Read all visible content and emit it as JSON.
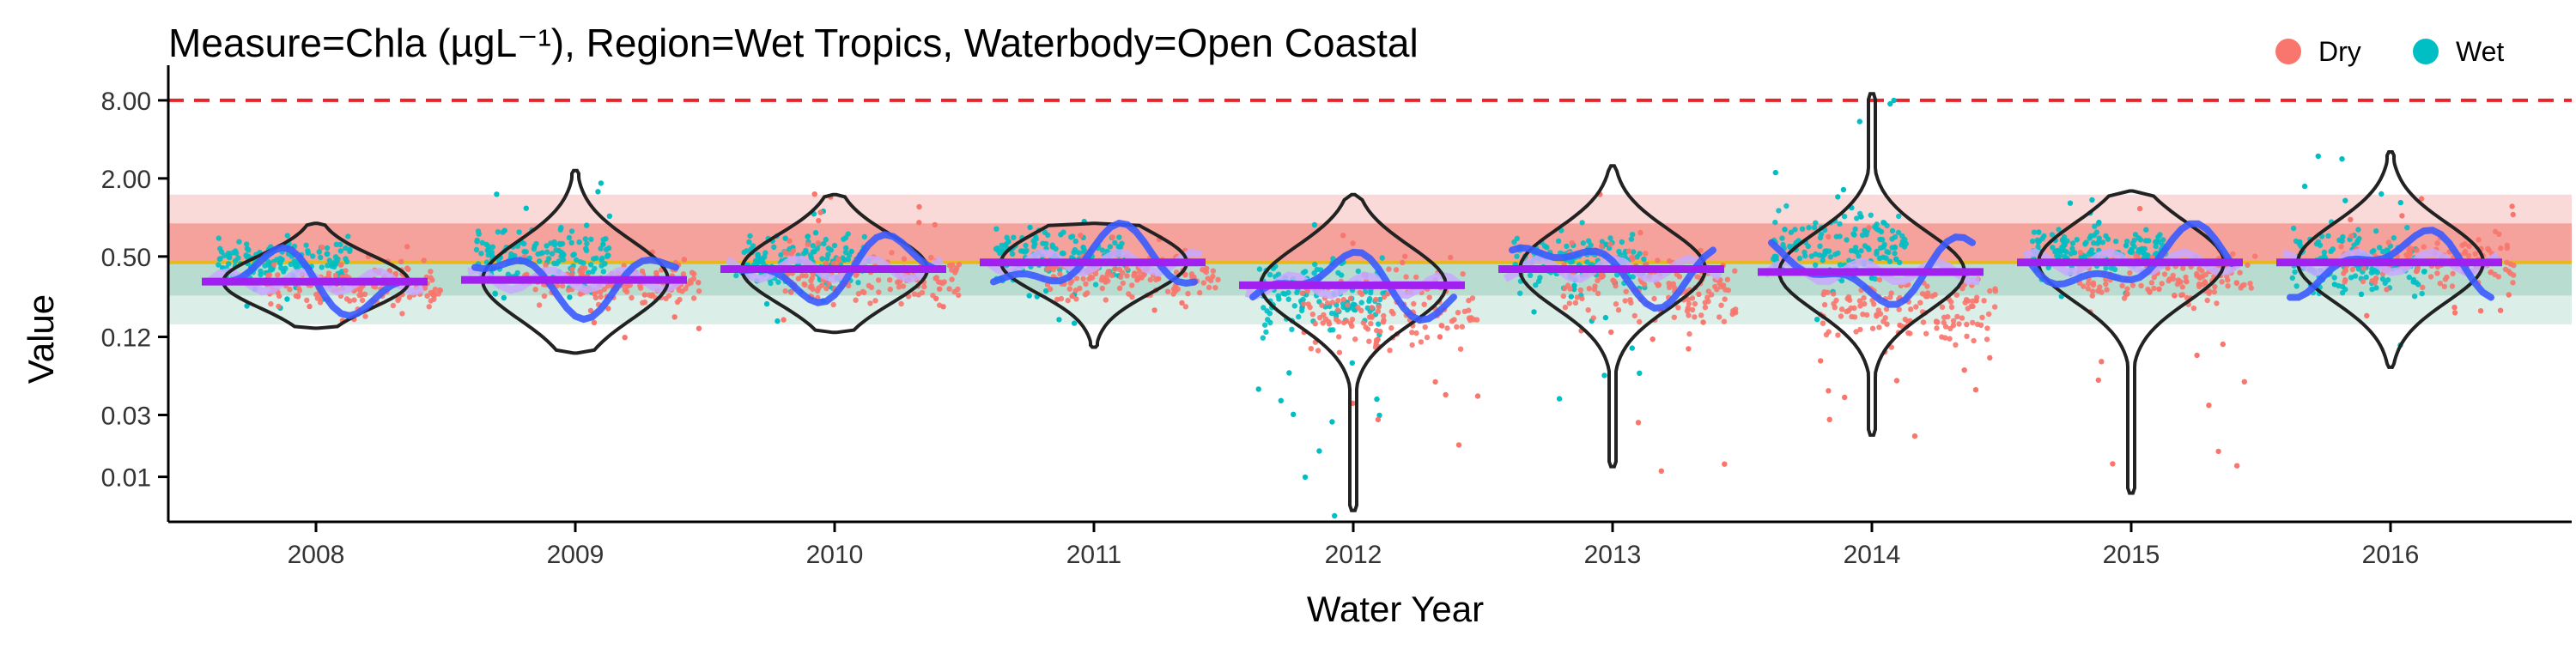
{
  "chart_data": {
    "type": "scatter",
    "title": "Measure=Chla (µgL⁻¹), Region=Wet Tropics, Waterbody=Open Coastal",
    "xlabel": "Water Year",
    "ylabel": "Value",
    "y_scale": "log",
    "ylim": [
      0.0045,
      11
    ],
    "categories": [
      "2008",
      "2009",
      "2010",
      "2011",
      "2012",
      "2013",
      "2014",
      "2015",
      "2016"
    ],
    "y_ticks": [
      {
        "value": 8.0,
        "label": "8.00"
      },
      {
        "value": 2.0,
        "label": "2.00"
      },
      {
        "value": 0.5,
        "label": "0.50"
      },
      {
        "value": 0.12,
        "label": "0.12"
      },
      {
        "value": 0.03,
        "label": "0.03"
      },
      {
        "value": 0.01,
        "label": "0.01"
      }
    ],
    "legend": {
      "position": "top-right",
      "entries": [
        {
          "label": "Dry",
          "color": "#F8766D"
        },
        {
          "label": "Wet",
          "color": "#00BFC4"
        }
      ]
    },
    "reference_lines": [
      {
        "name": "threshold-dashed",
        "value": 8.0,
        "style": "dashed",
        "color": "#E8252B"
      },
      {
        "name": "guideline",
        "value": 0.45,
        "style": "solid",
        "color": "#E8B820"
      }
    ],
    "bands": [
      {
        "from": 0.45,
        "to": 1.5,
        "color": "#FADAD9"
      },
      {
        "from": 0.45,
        "to": 0.9,
        "color": "#F4A29B"
      },
      {
        "from": 0.15,
        "to": 0.45,
        "color": "#DCEEE8"
      },
      {
        "from": 0.25,
        "to": 0.45,
        "color": "#B8DCCF"
      }
    ],
    "years": [
      {
        "year": "2008",
        "median": 0.32,
        "violin": {
          "min": 0.14,
          "max": 0.9
        },
        "wet": {
          "center": 0.45,
          "spread": 0.35,
          "min": 0.2,
          "max": 0.85
        },
        "dry": {
          "center": 0.3,
          "spread": 0.3,
          "min": 0.14,
          "max": 0.6
        }
      },
      {
        "year": "2009",
        "median": 0.33,
        "violin": {
          "min": 0.09,
          "max": 2.3
        },
        "wet": {
          "center": 0.5,
          "spread": 0.45,
          "min": 0.2,
          "max": 2.3
        },
        "dry": {
          "center": 0.3,
          "spread": 0.3,
          "min": 0.1,
          "max": 0.6
        }
      },
      {
        "year": "2010",
        "median": 0.4,
        "violin": {
          "min": 0.13,
          "max": 1.5
        },
        "wet": {
          "center": 0.45,
          "spread": 0.4,
          "min": 0.15,
          "max": 1.4
        },
        "dry": {
          "center": 0.35,
          "spread": 0.35,
          "min": 0.15,
          "max": 1.7
        }
      },
      {
        "year": "2011",
        "median": 0.45,
        "violin": {
          "min": 0.1,
          "max": 0.9
        },
        "wet": {
          "center": 0.5,
          "spread": 0.35,
          "min": 0.15,
          "max": 0.95
        },
        "dry": {
          "center": 0.35,
          "spread": 0.35,
          "min": 0.15,
          "max": 0.8
        }
      },
      {
        "year": "2012",
        "median": 0.3,
        "violin": {
          "min": 0.0055,
          "max": 1.5
        },
        "wet": {
          "center": 0.25,
          "spread": 0.5,
          "min": 0.005,
          "max": 1.5
        },
        "dry": {
          "center": 0.2,
          "spread": 0.6,
          "min": 0.012,
          "max": 0.8
        }
      },
      {
        "year": "2013",
        "median": 0.4,
        "violin": {
          "min": 0.012,
          "max": 2.5
        },
        "wet": {
          "center": 0.45,
          "spread": 0.4,
          "min": 0.03,
          "max": 1.0
        },
        "dry": {
          "center": 0.3,
          "spread": 0.55,
          "min": 0.01,
          "max": 2.2
        }
      },
      {
        "year": "2014",
        "median": 0.38,
        "violin": {
          "min": 0.021,
          "max": 9.0
        },
        "wet": {
          "center": 0.6,
          "spread": 0.55,
          "min": 0.15,
          "max": 8.5
        },
        "dry": {
          "center": 0.2,
          "spread": 0.55,
          "min": 0.02,
          "max": 1.0
        }
      },
      {
        "year": "2015",
        "median": 0.45,
        "violin": {
          "min": 0.0075,
          "max": 1.6
        },
        "wet": {
          "center": 0.55,
          "spread": 0.35,
          "min": 0.2,
          "max": 1.4
        },
        "dry": {
          "center": 0.35,
          "spread": 0.4,
          "min": 0.007,
          "max": 1.3
        }
      },
      {
        "year": "2016",
        "median": 0.45,
        "violin": {
          "min": 0.07,
          "max": 3.2
        },
        "wet": {
          "center": 0.45,
          "spread": 0.45,
          "min": 0.07,
          "max": 3.2
        },
        "dry": {
          "center": 0.45,
          "spread": 0.35,
          "min": 0.15,
          "max": 1.5
        }
      }
    ],
    "colors": {
      "dry": "#F8766D",
      "wet": "#00BFC4",
      "trend": "#3B5BFF",
      "median_bar": "#A020F0",
      "smooth": "#C8A8FF",
      "violin": "#222222"
    }
  }
}
